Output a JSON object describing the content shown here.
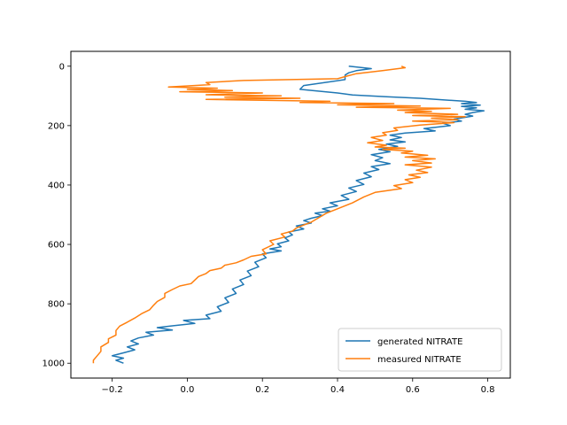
{
  "chart_data": {
    "type": "line",
    "title": "",
    "xlabel": "",
    "ylabel": "",
    "xlim": [
      -0.31,
      0.86
    ],
    "ylim": [
      1050,
      -50
    ],
    "y_inverted": true,
    "x_ticks": [
      -0.2,
      0.0,
      0.2,
      0.4,
      0.6,
      0.8
    ],
    "x_tick_labels": [
      "−0.2",
      "0.0",
      "0.2",
      "0.4",
      "0.6",
      "0.8"
    ],
    "y_ticks": [
      0,
      200,
      400,
      600,
      800,
      1000
    ],
    "y_tick_labels": [
      "0",
      "200",
      "400",
      "600",
      "800",
      "1000"
    ],
    "grid": false,
    "legend_position": "lower-right",
    "series": [
      {
        "name": "generated NITRATE",
        "color": "#1f77b4",
        "points": [
          [
            0.43,
            0
          ],
          [
            0.49,
            8
          ],
          [
            0.45,
            15
          ],
          [
            0.43,
            22
          ],
          [
            0.42,
            30
          ],
          [
            0.42,
            45
          ],
          [
            0.31,
            65
          ],
          [
            0.3,
            78
          ],
          [
            0.4,
            90
          ],
          [
            0.44,
            97
          ],
          [
            0.53,
            103
          ],
          [
            0.62,
            108
          ],
          [
            0.68,
            113
          ],
          [
            0.74,
            118
          ],
          [
            0.77,
            122
          ],
          [
            0.73,
            126
          ],
          [
            0.78,
            131
          ],
          [
            0.73,
            135
          ],
          [
            0.77,
            140
          ],
          [
            0.74,
            145
          ],
          [
            0.79,
            150
          ],
          [
            0.76,
            156
          ],
          [
            0.74,
            162
          ],
          [
            0.76,
            168
          ],
          [
            0.71,
            178
          ],
          [
            0.73,
            185
          ],
          [
            0.68,
            192
          ],
          [
            0.7,
            200
          ],
          [
            0.63,
            210
          ],
          [
            0.66,
            218
          ],
          [
            0.58,
            225
          ],
          [
            0.54,
            232
          ],
          [
            0.57,
            240
          ],
          [
            0.54,
            248
          ],
          [
            0.58,
            255
          ],
          [
            0.53,
            262
          ],
          [
            0.56,
            270
          ],
          [
            0.51,
            280
          ],
          [
            0.54,
            288
          ],
          [
            0.49,
            298
          ],
          [
            0.52,
            308
          ],
          [
            0.5,
            318
          ],
          [
            0.54,
            328
          ],
          [
            0.49,
            338
          ],
          [
            0.51,
            348
          ],
          [
            0.47,
            360
          ],
          [
            0.49,
            372
          ],
          [
            0.45,
            385
          ],
          [
            0.47,
            398
          ],
          [
            0.43,
            410
          ],
          [
            0.45,
            422
          ],
          [
            0.41,
            435
          ],
          [
            0.43,
            448
          ],
          [
            0.38,
            460
          ],
          [
            0.4,
            470
          ],
          [
            0.36,
            480
          ],
          [
            0.38,
            488
          ],
          [
            0.34,
            495
          ],
          [
            0.36,
            503
          ],
          [
            0.33,
            512
          ],
          [
            0.31,
            520
          ],
          [
            0.33,
            528
          ],
          [
            0.29,
            538
          ],
          [
            0.31,
            548
          ],
          [
            0.27,
            558
          ],
          [
            0.28,
            568
          ],
          [
            0.26,
            578
          ],
          [
            0.27,
            588
          ],
          [
            0.24,
            598
          ],
          [
            0.25,
            608
          ],
          [
            0.22,
            615
          ],
          [
            0.25,
            622
          ],
          [
            0.2,
            632
          ],
          [
            0.21,
            645
          ],
          [
            0.18,
            660
          ],
          [
            0.19,
            675
          ],
          [
            0.16,
            690
          ],
          [
            0.17,
            705
          ],
          [
            0.14,
            720
          ],
          [
            0.15,
            735
          ],
          [
            0.12,
            750
          ],
          [
            0.13,
            765
          ],
          [
            0.1,
            780
          ],
          [
            0.11,
            795
          ],
          [
            0.08,
            810
          ],
          [
            0.09,
            825
          ],
          [
            0.05,
            838
          ],
          [
            0.06,
            850
          ],
          [
            -0.01,
            856
          ],
          [
            0.02,
            866
          ],
          [
            -0.04,
            874
          ],
          [
            -0.08,
            880
          ],
          [
            -0.04,
            888
          ],
          [
            -0.11,
            896
          ],
          [
            -0.09,
            905
          ],
          [
            -0.13,
            915
          ],
          [
            -0.15,
            925
          ],
          [
            -0.13,
            935
          ],
          [
            -0.16,
            945
          ],
          [
            -0.14,
            955
          ],
          [
            -0.17,
            965
          ],
          [
            -0.2,
            975
          ],
          [
            -0.17,
            983
          ],
          [
            -0.19,
            990
          ],
          [
            -0.17,
            1000
          ]
        ]
      },
      {
        "name": "measured NITRATE",
        "color": "#ff7f0e",
        "points": [
          [
            0.57,
            0
          ],
          [
            0.58,
            5
          ],
          [
            0.52,
            15
          ],
          [
            0.45,
            25
          ],
          [
            0.42,
            35
          ],
          [
            0.4,
            42
          ],
          [
            0.15,
            48
          ],
          [
            0.05,
            55
          ],
          [
            0.06,
            62
          ],
          [
            -0.05,
            70
          ],
          [
            0.08,
            74
          ],
          [
            0.0,
            78
          ],
          [
            0.12,
            82
          ],
          [
            -0.02,
            86
          ],
          [
            0.2,
            90
          ],
          [
            0.05,
            96
          ],
          [
            0.25,
            100
          ],
          [
            0.1,
            104
          ],
          [
            0.3,
            108
          ],
          [
            0.05,
            112
          ],
          [
            0.38,
            118
          ],
          [
            0.3,
            122
          ],
          [
            0.55,
            126
          ],
          [
            0.4,
            130
          ],
          [
            0.62,
            134
          ],
          [
            0.45,
            138
          ],
          [
            0.7,
            142
          ],
          [
            0.56,
            148
          ],
          [
            0.65,
            152
          ],
          [
            0.58,
            156
          ],
          [
            0.72,
            162
          ],
          [
            0.6,
            166
          ],
          [
            0.74,
            170
          ],
          [
            0.65,
            175
          ],
          [
            0.72,
            180
          ],
          [
            0.6,
            185
          ],
          [
            0.71,
            190
          ],
          [
            0.62,
            198
          ],
          [
            0.55,
            208
          ],
          [
            0.56,
            216
          ],
          [
            0.52,
            224
          ],
          [
            0.53,
            232
          ],
          [
            0.49,
            240
          ],
          [
            0.52,
            250
          ],
          [
            0.48,
            258
          ],
          [
            0.53,
            266
          ],
          [
            0.5,
            272
          ],
          [
            0.58,
            276
          ],
          [
            0.52,
            280
          ],
          [
            0.6,
            286
          ],
          [
            0.57,
            292
          ],
          [
            0.64,
            300
          ],
          [
            0.58,
            306
          ],
          [
            0.66,
            312
          ],
          [
            0.6,
            318
          ],
          [
            0.65,
            326
          ],
          [
            0.58,
            332
          ],
          [
            0.65,
            340
          ],
          [
            0.61,
            350
          ],
          [
            0.64,
            358
          ],
          [
            0.59,
            366
          ],
          [
            0.62,
            374
          ],
          [
            0.58,
            382
          ],
          [
            0.6,
            392
          ],
          [
            0.55,
            402
          ],
          [
            0.57,
            412
          ],
          [
            0.5,
            425
          ],
          [
            0.47,
            440
          ],
          [
            0.44,
            460
          ],
          [
            0.4,
            480
          ],
          [
            0.37,
            495
          ],
          [
            0.35,
            510
          ],
          [
            0.33,
            525
          ],
          [
            0.31,
            535
          ],
          [
            0.29,
            545
          ],
          [
            0.28,
            555
          ],
          [
            0.25,
            565
          ],
          [
            0.26,
            575
          ],
          [
            0.22,
            588
          ],
          [
            0.23,
            600
          ],
          [
            0.2,
            618
          ],
          [
            0.21,
            632
          ],
          [
            0.17,
            640
          ],
          [
            0.15,
            652
          ],
          [
            0.13,
            662
          ],
          [
            0.1,
            670
          ],
          [
            0.09,
            680
          ],
          [
            0.06,
            688
          ],
          [
            0.05,
            698
          ],
          [
            0.03,
            708
          ],
          [
            0.02,
            720
          ],
          [
            0.01,
            732
          ],
          [
            -0.02,
            740
          ],
          [
            -0.04,
            752
          ],
          [
            -0.06,
            765
          ],
          [
            -0.06,
            778
          ],
          [
            -0.08,
            792
          ],
          [
            -0.09,
            805
          ],
          [
            -0.1,
            820
          ],
          [
            -0.12,
            832
          ],
          [
            -0.14,
            848
          ],
          [
            -0.16,
            862
          ],
          [
            -0.18,
            875
          ],
          [
            -0.19,
            890
          ],
          [
            -0.19,
            905
          ],
          [
            -0.21,
            918
          ],
          [
            -0.21,
            930
          ],
          [
            -0.23,
            945
          ],
          [
            -0.23,
            960
          ],
          [
            -0.24,
            975
          ],
          [
            -0.25,
            990
          ],
          [
            -0.25,
            1000
          ]
        ]
      }
    ]
  }
}
